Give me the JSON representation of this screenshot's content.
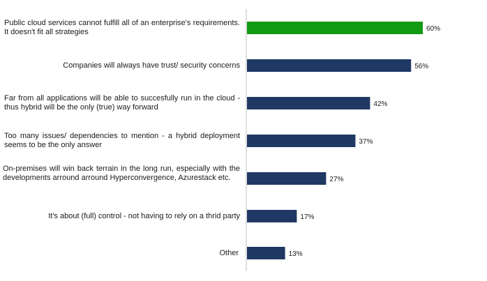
{
  "chart_data": {
    "type": "bar",
    "orientation": "horizontal",
    "categories": [
      "Public cloud services cannot fulfill all of an enterprise's requirements. It doesn't fit all strategies",
      "Companies will always have trust/ security concerns",
      "Far from all applications will be able to succesfully run in the cloud - thus hybrid will be the only (true) way forward",
      "Too many issues/ dependencies to mention - a hybrid deployment seems to be the only answer",
      "On-premises will win back terrain in the long run, especially with the developments arround arround Hyperconvergence, Azurestack etc.",
      "It's about (full) control - not having to rely on a thrid party",
      "Other"
    ],
    "values": [
      60,
      56,
      42,
      37,
      27,
      17,
      13
    ],
    "value_labels": [
      "60%",
      "56%",
      "42%",
      "37%",
      "27%",
      "17%",
      "13%"
    ],
    "unit": "%",
    "xlim": [
      0,
      100
    ],
    "highlight_index": 0,
    "colors": {
      "highlight": "#139a13",
      "bar": "#1f3864",
      "axis": "#bfbfbf"
    }
  }
}
